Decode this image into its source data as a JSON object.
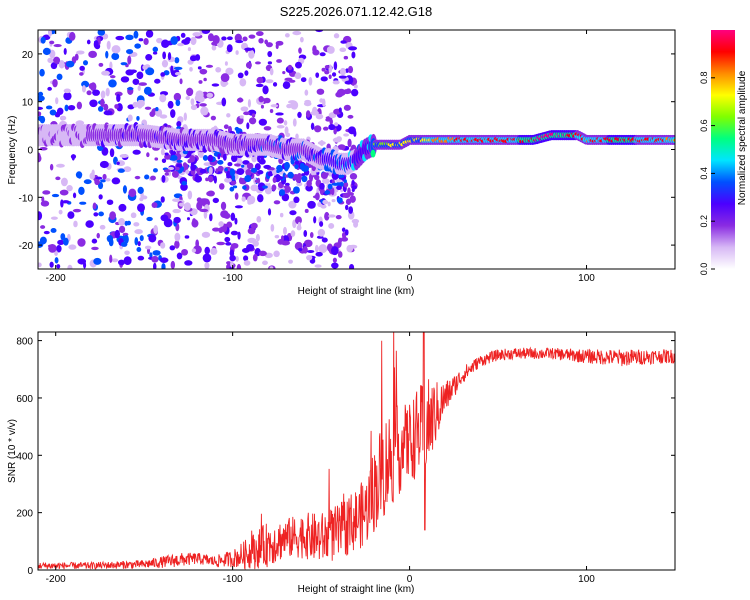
{
  "title": "S225.2026.071.12.42.G18",
  "chart_data": [
    {
      "type": "heatmap",
      "xlabel": "Height of straight line (km)",
      "ylabel": "Frequency (Hz)",
      "xlim": [
        -210,
        150
      ],
      "ylim": [
        -25,
        25
      ],
      "x_ticks": [
        -200,
        -100,
        0,
        100
      ],
      "y_ticks": [
        -20,
        -10,
        0,
        10,
        20
      ],
      "colorbar": {
        "label": "Normalized spectral amplitude",
        "range": [
          0,
          1
        ],
        "ticks": [
          "0.0",
          "0.2",
          "0.4",
          "0.6",
          "0.8"
        ],
        "colors": [
          "#ffffff",
          "#d7b8f5",
          "#8a2be2",
          "#4b00ff",
          "#0050ff",
          "#00e5ff",
          "#00ff80",
          "#7fff00",
          "#ffff00",
          "#ff8c00",
          "#ff0000",
          "#ff007f"
        ]
      },
      "ridge": {
        "x": [
          -210,
          -180,
          -150,
          -130,
          -110,
          -100,
          -90,
          -80,
          -70,
          -60,
          -55,
          -50,
          -45,
          -40,
          -35,
          -30,
          -25,
          -20,
          -15,
          -10,
          -5,
          0,
          10,
          20,
          40,
          60,
          70,
          80,
          90,
          95,
          100,
          110,
          120,
          130,
          150
        ],
        "freq": [
          3,
          3,
          3,
          2,
          2,
          1,
          1,
          1,
          0,
          0,
          -1,
          -2,
          -2,
          -3,
          -3,
          -2,
          0,
          1,
          1,
          1,
          1,
          2,
          2,
          2,
          2,
          2,
          2,
          3,
          3,
          3,
          2,
          2,
          2,
          2,
          2
        ],
        "amp": [
          0.2,
          0.25,
          0.3,
          0.35,
          0.3,
          0.3,
          0.35,
          0.4,
          0.4,
          0.4,
          0.4,
          0.4,
          0.45,
          0.45,
          0.5,
          0.55,
          0.55,
          0.6,
          0.65,
          0.7,
          0.7,
          0.72,
          0.75,
          0.85,
          0.9,
          0.9,
          0.95,
          1.0,
          0.95,
          0.9,
          0.85,
          0.9,
          0.95,
          0.9,
          0.85
        ]
      }
    },
    {
      "type": "line",
      "xlabel": "Height of straight line (km)",
      "ylabel": "SNR (10 * v/v)",
      "xlim": [
        -210,
        150
      ],
      "ylim": [
        0,
        830
      ],
      "x_ticks": [
        -200,
        -100,
        0,
        100
      ],
      "y_ticks": [
        0,
        200,
        400,
        600,
        800
      ],
      "color": "#ee2222",
      "series": [
        {
          "name": "SNR",
          "x": [
            -210,
            -180,
            -150,
            -130,
            -120,
            -110,
            -100,
            -90,
            -80,
            -70,
            -60,
            -50,
            -40,
            -30,
            -25,
            -20,
            -15,
            -10,
            -5,
            0,
            5,
            10,
            15,
            20,
            25,
            30,
            40,
            50,
            60,
            80,
            100,
            120,
            140,
            150
          ],
          "base": [
            15,
            15,
            20,
            35,
            40,
            30,
            40,
            60,
            90,
            110,
            120,
            110,
            130,
            180,
            200,
            280,
            350,
            400,
            420,
            450,
            480,
            500,
            550,
            600,
            640,
            680,
            730,
            750,
            755,
            755,
            745,
            740,
            745,
            745
          ],
          "noise": [
            12,
            12,
            15,
            25,
            20,
            20,
            30,
            60,
            80,
            70,
            80,
            90,
            100,
            110,
            120,
            150,
            180,
            180,
            150,
            140,
            160,
            170,
            110,
            60,
            40,
            30,
            20,
            20,
            20,
            20,
            25,
            30,
            25,
            25
          ]
        }
      ]
    }
  ]
}
